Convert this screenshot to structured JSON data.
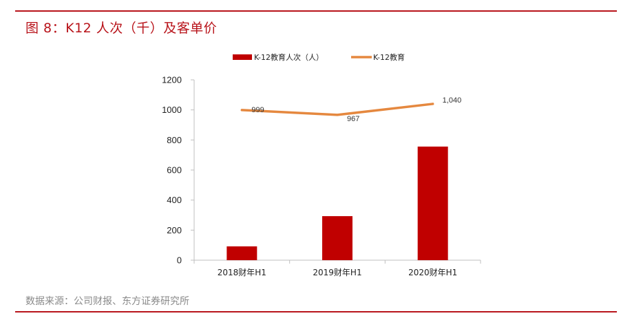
{
  "figure": {
    "title": "图 8：K12 人次（千）及客单价",
    "source": "数据来源：公司财报、东方证券研究所"
  },
  "colors": {
    "bar": "#c00000",
    "line": "#e5883f",
    "accent": "#b8131a"
  },
  "chart_data": {
    "type": "bar",
    "categories": [
      "2018财年H1",
      "2019财年H1",
      "2020财年H1"
    ],
    "series": [
      {
        "name": "K-12教育人次（人）",
        "type": "bar",
        "values": [
          92,
          293,
          756
        ]
      },
      {
        "name": "K-12教育",
        "type": "line",
        "values": [
          999,
          967,
          1040
        ],
        "labels": [
          "999",
          "967",
          "1,040"
        ]
      }
    ],
    "yticks": [
      "0",
      "200",
      "400",
      "600",
      "800",
      "1000",
      "1200"
    ],
    "ylim": [
      0,
      1200
    ],
    "legend": "top",
    "grid": false
  }
}
